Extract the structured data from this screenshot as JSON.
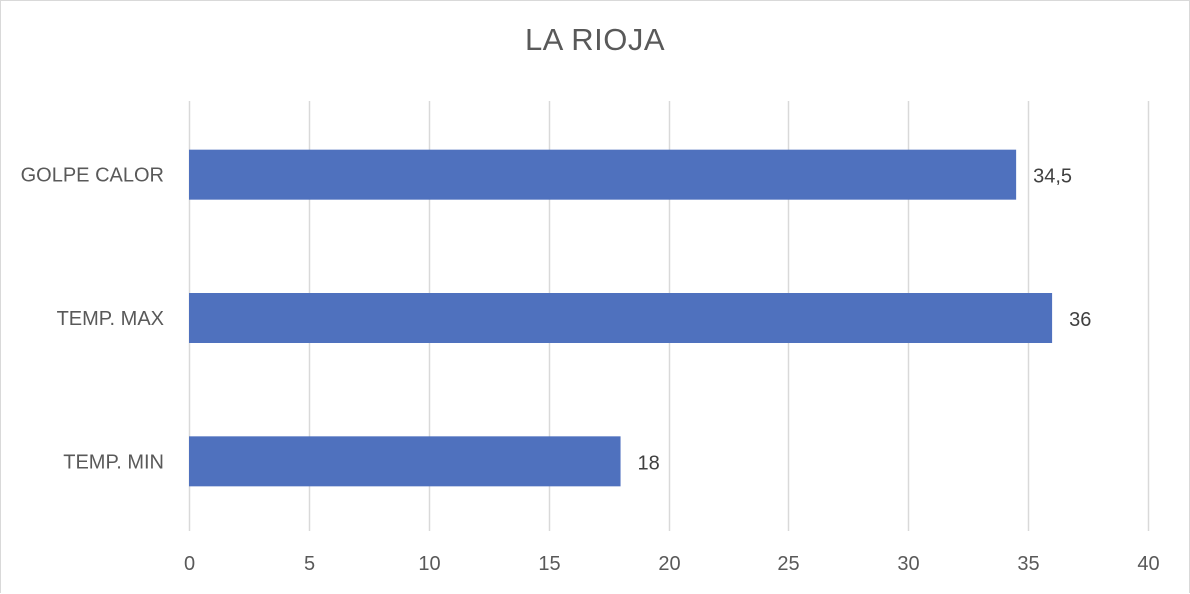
{
  "chart_data": {
    "type": "bar",
    "orientation": "horizontal",
    "title": "LA RIOJA",
    "categories": [
      "GOLPE CALOR",
      "TEMP. MAX",
      "TEMP. MIN"
    ],
    "values": [
      34.5,
      36,
      18
    ],
    "data_labels": [
      "34,5",
      "36",
      "18"
    ],
    "x_ticks": [
      "0",
      "5",
      "10",
      "15",
      "20",
      "25",
      "30",
      "35",
      "40"
    ],
    "xlim": [
      0,
      40
    ],
    "xlabel": "",
    "ylabel": "",
    "grid": true,
    "legend": "none",
    "bar_color": "#4f71be",
    "grid_color": "#d9d9d9"
  }
}
